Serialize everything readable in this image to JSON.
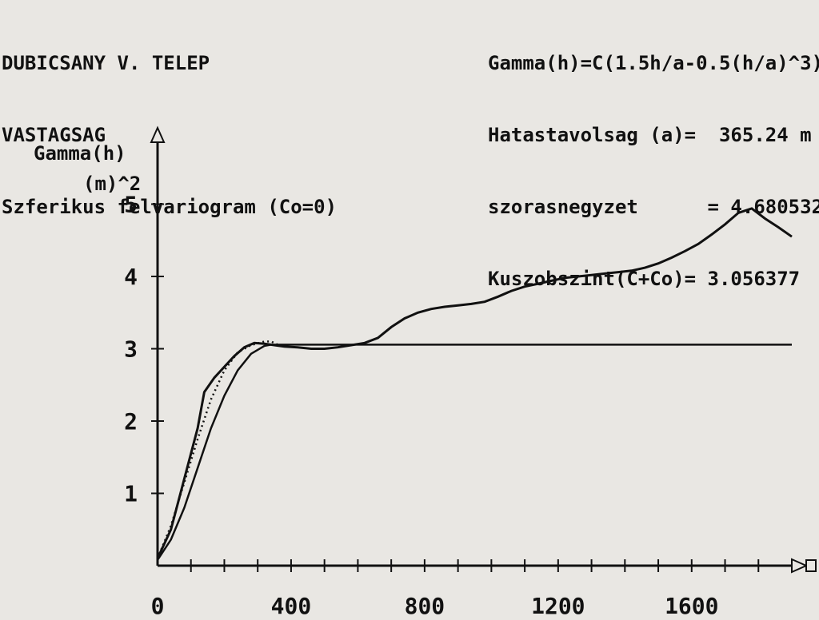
{
  "header": {
    "left": [
      "DUBICSANY V. TELEP",
      "VASTAGSAG",
      "Szferikus felvariogram (Co=0)"
    ],
    "right": [
      "Gamma(h)=C(1.5h/a-0.5(h/a)^3)",
      "Hatastavolsag (a)=  365.24 m",
      "szorasnegyzet      = 4.680532",
      "Kuszobszint(C+Co)= 3.056377"
    ]
  },
  "chart_data": {
    "type": "line",
    "ylabel": [
      "Gamma(h)",
      "(m)^2"
    ],
    "xlim": [
      0,
      1900
    ],
    "ylim": [
      0,
      6
    ],
    "x_ticks": [
      0,
      400,
      800,
      1200,
      1600
    ],
    "y_ticks": [
      1,
      2,
      3,
      4,
      5
    ],
    "series": [
      {
        "style": "solid-thin",
        "x": [
          0,
          40,
          80,
          120,
          140,
          170,
          200,
          230,
          260,
          290,
          320,
          350,
          380,
          420,
          460,
          500,
          540,
          580,
          620,
          660,
          700,
          740,
          780,
          820,
          860,
          900,
          940,
          980,
          1020,
          1060,
          1100,
          1140,
          1180,
          1220,
          1260,
          1300,
          1340,
          1380,
          1420,
          1460,
          1500,
          1540,
          1580,
          1620,
          1660,
          1700,
          1740,
          1780,
          1820,
          1860,
          1900
        ],
        "y": [
          0.1,
          0.5,
          1.2,
          1.9,
          2.4,
          2.6,
          2.75,
          2.9,
          3.02,
          3.08,
          3.07,
          3.05,
          3.03,
          3.02,
          3.0,
          3.0,
          3.02,
          3.05,
          3.08,
          3.15,
          3.3,
          3.42,
          3.5,
          3.55,
          3.58,
          3.6,
          3.62,
          3.65,
          3.72,
          3.8,
          3.86,
          3.9,
          3.94,
          3.98,
          4.0,
          4.02,
          4.04,
          4.06,
          4.08,
          4.12,
          4.18,
          4.26,
          4.35,
          4.45,
          4.58,
          4.72,
          4.88,
          4.94,
          4.8,
          4.68,
          4.55
        ]
      },
      {
        "style": "solid",
        "x": [
          0,
          40,
          80,
          120,
          160,
          200,
          240,
          280,
          320,
          340,
          360,
          380,
          420,
          460,
          500,
          540,
          580,
          620,
          660,
          700,
          740,
          780,
          820,
          860,
          900,
          940,
          980,
          1020,
          1060,
          1100,
          1140,
          1180,
          1220,
          1260,
          1300,
          1340,
          1380,
          1420,
          1460,
          1500,
          1540,
          1580,
          1620,
          1660,
          1700,
          1740,
          1780,
          1820,
          1860,
          1900
        ],
        "y": [
          0.08,
          0.36,
          0.8,
          1.35,
          1.9,
          2.35,
          2.7,
          2.93,
          3.04,
          3.056,
          3.056,
          3.056,
          3.056,
          3.056,
          3.056,
          3.056,
          3.056,
          3.056,
          3.056,
          3.056,
          3.056,
          3.056,
          3.056,
          3.056,
          3.056,
          3.056,
          3.056,
          3.056,
          3.056,
          3.056,
          3.056,
          3.056,
          3.056,
          3.056,
          3.056,
          3.056,
          3.056,
          3.056,
          3.056,
          3.056,
          3.056,
          3.056,
          3.056,
          3.056,
          3.056,
          3.056,
          3.056,
          3.056,
          3.056,
          3.056
        ]
      },
      {
        "style": "dotted",
        "x": [
          0,
          40,
          80,
          120,
          160,
          200,
          240,
          280,
          320,
          340,
          360
        ],
        "y": [
          0.1,
          0.55,
          1.15,
          1.75,
          2.3,
          2.7,
          2.95,
          3.05,
          3.1,
          3.1,
          3.056
        ]
      }
    ]
  },
  "colors": {
    "ink": "#111111",
    "paper": "#e9e7e3"
  }
}
